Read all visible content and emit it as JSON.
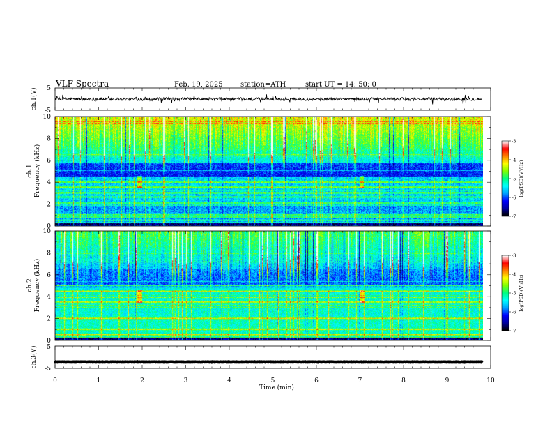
{
  "header": {
    "title": "VLF  Spectra",
    "date": "Feb. 19, 2025",
    "station": "station=ATH",
    "start": "start  UT  =    14: 50: 0"
  },
  "chart_data": [
    {
      "type": "line",
      "name": "ch1-waveform",
      "ylabel": "ch.1(V)",
      "ylim": [
        -5,
        5
      ],
      "yticks": [
        "5",
        "-5"
      ],
      "xlim": [
        0,
        10
      ],
      "x_end": 9.8,
      "mean_level": 0.0,
      "noise_amplitude": 0.7
    },
    {
      "type": "heatmap",
      "name": "ch1-spectrogram",
      "ylabel": "ch.1\nFrequency (kHz)",
      "ylim": [
        0,
        10
      ],
      "yticks": [
        "0",
        "2",
        "4",
        "6",
        "8",
        "10"
      ],
      "xlim": [
        0,
        10
      ],
      "x_end": 9.8,
      "colorbar": {
        "label": "log(PSD)(V²/Hz)",
        "range": [
          -7,
          -3
        ],
        "ticks": [
          "-3",
          "-4",
          "-5",
          "-6",
          "-7"
        ]
      },
      "bright_bands_khz": [
        0.5,
        0.8,
        1.0,
        2.0,
        3.0,
        3.5,
        4.0
      ],
      "events_min": [
        1.93,
        7.02
      ]
    },
    {
      "type": "heatmap",
      "name": "ch2-spectrogram",
      "ylabel": "ch.2\nFrequency (kHz)",
      "ylim": [
        0,
        10
      ],
      "yticks": [
        "0",
        "2",
        "4",
        "6",
        "8",
        "10"
      ],
      "xlim": [
        0,
        10
      ],
      "x_end": 9.8,
      "colorbar": {
        "label": "log(PSD)(V²/Hz)",
        "range": [
          -7,
          -3
        ],
        "ticks": [
          "-3",
          "-4",
          "-5",
          "-6",
          "-7"
        ]
      },
      "bright_bands_khz": [
        0.5,
        1.0,
        2.0,
        3.5,
        4.5,
        5.0
      ],
      "events_min": [
        1.93,
        7.02
      ]
    },
    {
      "type": "line",
      "name": "ch3-waveform",
      "ylabel": "ch.3(V)",
      "ylim": [
        -5,
        5
      ],
      "yticks": [
        "5",
        "-5"
      ],
      "xlim": [
        0,
        10
      ],
      "x_end": 9.8,
      "mean_level": -2.0,
      "noise_amplitude": 0.08
    }
  ],
  "xaxis": {
    "label": "Time  (min)",
    "ticks": [
      "0",
      "1",
      "2",
      "3",
      "4",
      "5",
      "6",
      "7",
      "8",
      "9",
      "10"
    ]
  },
  "colors": {
    "colormap": [
      "#000000",
      "#0000a0",
      "#0000ff",
      "#00a0ff",
      "#00ffff",
      "#00ff80",
      "#80ff00",
      "#ffff00",
      "#ff8000",
      "#ff0000",
      "#ffffff"
    ]
  }
}
